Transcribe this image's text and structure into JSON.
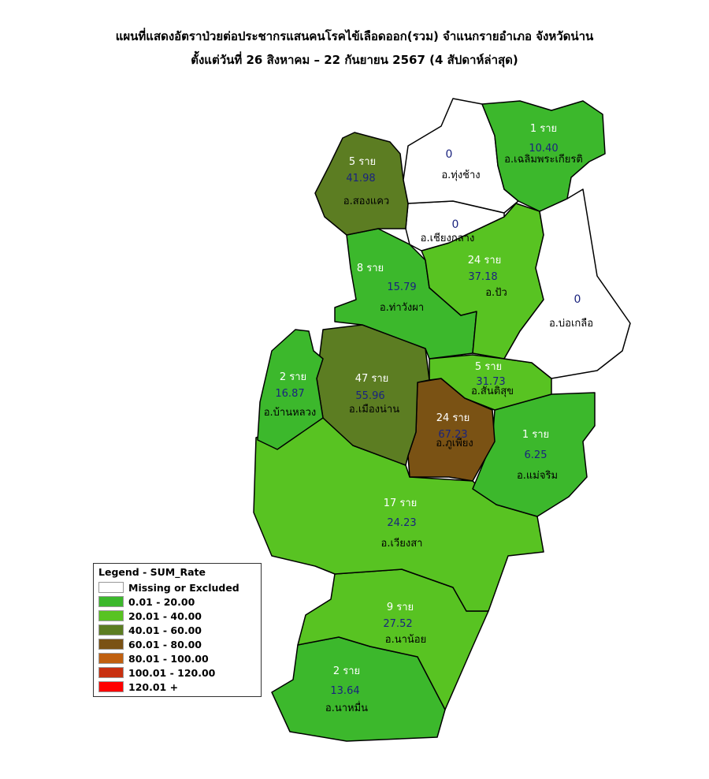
{
  "title": {
    "line1": "แผนที่แสดงอัตราป่วยต่อประชากรแสนคนโรคไข้เลือดออก(รวม) จำแนกรายอำเภอ จังหวัดน่าน",
    "line2": "ตั้งแต่วันที่ 26 สิงหาคม – 22 กันยายน 2567 (4 สัปดาห์ล่าสุด)"
  },
  "legend": {
    "title": "Legend - SUM_Rate",
    "items": [
      {
        "label": "Missing or Excluded",
        "color": "#ffffff"
      },
      {
        "label": "0.01 - 20.00",
        "color": "#3cb82c"
      },
      {
        "label": "20.01 - 40.00",
        "color": "#58c322"
      },
      {
        "label": "40.01 - 60.00",
        "color": "#5c7d22"
      },
      {
        "label": "60.01 - 80.00",
        "color": "#7a5214"
      },
      {
        "label": "80.01 - 100.00",
        "color": "#c06010"
      },
      {
        "label": "100.01 - 120.00",
        "color": "#c83010"
      },
      {
        "label": "120.01 +",
        "color": "#ff0000"
      }
    ]
  },
  "districts": {
    "tung_chang": {
      "name": "อ.ทุ่งช้าง",
      "cases": "",
      "rate": "0",
      "color": "#ffffff"
    },
    "chaloem": {
      "name": "อ.เฉลิมพระเกียรติ",
      "cases": "1 ราย",
      "rate": "10.40",
      "color": "#3cb82c"
    },
    "song_khwae": {
      "name": "อ.สองแคว",
      "cases": "5 ราย",
      "rate": "41.98",
      "color": "#5c7d22"
    },
    "chiang_klang": {
      "name": "อ.เชียงกลาง",
      "cases": "",
      "rate": "0",
      "color": "#ffffff"
    },
    "tha_wang_pha": {
      "name": "อ.ท่าวังผา",
      "cases": "8 ราย",
      "rate": "15.79",
      "color": "#3cb82c"
    },
    "pua": {
      "name": "อ.ปัว",
      "cases": "24 ราย",
      "rate": "37.18",
      "color": "#58c322"
    },
    "bo_kluea": {
      "name": "อ.บ่อเกลือ",
      "cases": "",
      "rate": "0",
      "color": "#ffffff"
    },
    "ban_luang": {
      "name": "อ.บ้านหลวง",
      "cases": "2 ราย",
      "rate": "16.87",
      "color": "#3cb82c"
    },
    "mueang_nan": {
      "name": "อ.เมืองน่าน",
      "cases": "47 ราย",
      "rate": "55.96",
      "color": "#5c7d22"
    },
    "santi_suk": {
      "name": "อ.สันติสุข",
      "cases": "5 ราย",
      "rate": "31.73",
      "color": "#58c322"
    },
    "phu_phiang": {
      "name": "อ.ภูเพียง",
      "cases": "24 ราย",
      "rate": "67.23",
      "color": "#7a5214"
    },
    "mae_charim": {
      "name": "อ.แม่จริม",
      "cases": "1 ราย",
      "rate": "6.25",
      "color": "#3cb82c"
    },
    "wiang_sa": {
      "name": "อ.เวียงสา",
      "cases": "17 ราย",
      "rate": "24.23",
      "color": "#58c322"
    },
    "na_noi": {
      "name": "อ.นาน้อย",
      "cases": "9 ราย",
      "rate": "27.52",
      "color": "#58c322"
    },
    "na_muen": {
      "name": "อ.นาหมื่น",
      "cases": "2 ราย",
      "rate": "13.64",
      "color": "#3cb82c"
    }
  }
}
